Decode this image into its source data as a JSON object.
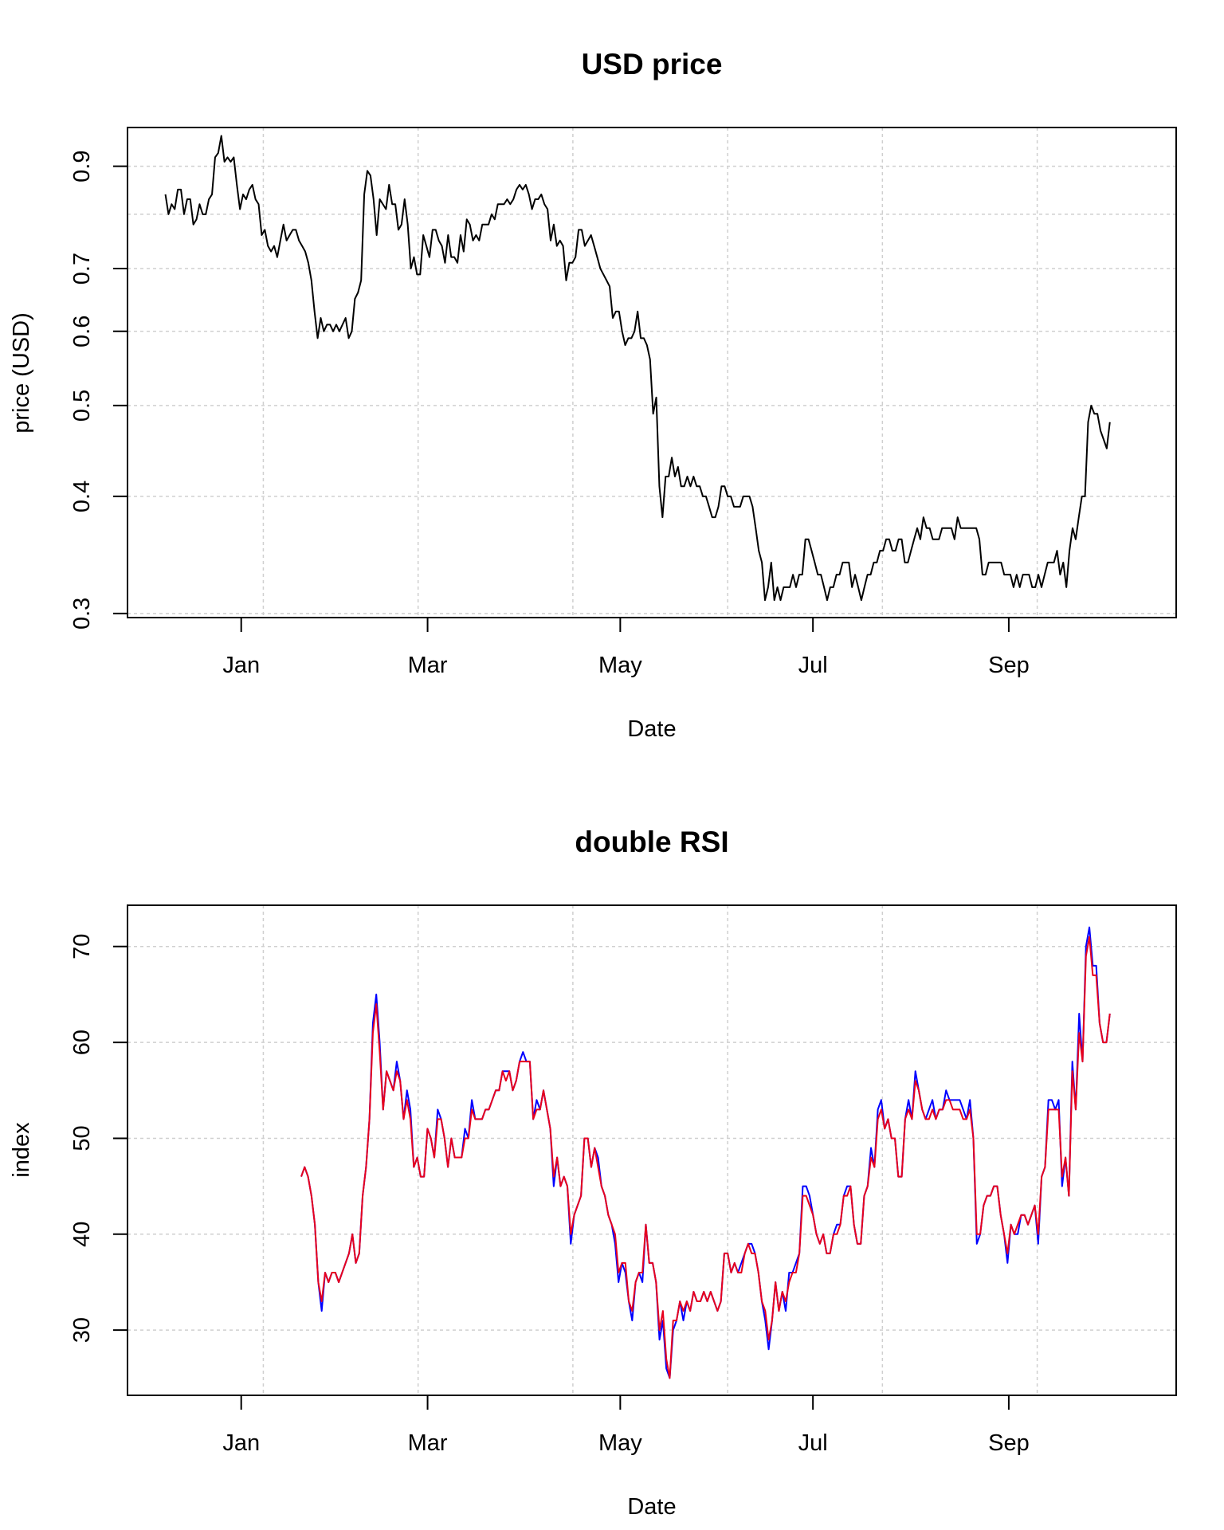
{
  "chart_data": [
    {
      "type": "line",
      "title": "USD price",
      "xlabel": "Date",
      "ylabel": "price (USD)",
      "y_scale": "log",
      "xlim": [
        "2017-11-26",
        "2018-10-24"
      ],
      "ylim": [
        0.297,
        0.99
      ],
      "x_ticks": [
        {
          "label": "Jan",
          "date": "2018-01-01"
        },
        {
          "label": "Mar",
          "date": "2018-03-01"
        },
        {
          "label": "May",
          "date": "2018-05-01"
        },
        {
          "label": "Jul",
          "date": "2018-07-01"
        },
        {
          "label": "Sep",
          "date": "2018-09-01"
        }
      ],
      "x_grid": [
        "2018-01-08",
        "2018-02-26",
        "2018-04-16",
        "2018-06-04",
        "2018-07-23",
        "2018-09-10"
      ],
      "y_ticks": [
        0.3,
        0.4,
        0.5,
        0.6,
        0.7,
        0.9
      ],
      "y_grid": [
        0.3,
        0.4,
        0.5,
        0.6,
        0.7,
        0.8,
        0.9,
        1.0
      ],
      "grid": true,
      "series": [
        {
          "color": "#000000",
          "start": "2017-12-08",
          "end": "2018-10-03",
          "values": [
            0.84,
            0.8,
            0.82,
            0.81,
            0.85,
            0.85,
            0.8,
            0.83,
            0.83,
            0.78,
            0.79,
            0.82,
            0.8,
            0.8,
            0.83,
            0.84,
            0.92,
            0.93,
            0.97,
            0.91,
            0.92,
            0.91,
            0.92,
            0.86,
            0.81,
            0.84,
            0.83,
            0.85,
            0.86,
            0.83,
            0.82,
            0.76,
            0.77,
            0.74,
            0.73,
            0.74,
            0.72,
            0.75,
            0.78,
            0.75,
            0.76,
            0.77,
            0.77,
            0.75,
            0.74,
            0.73,
            0.71,
            0.68,
            0.63,
            0.59,
            0.62,
            0.6,
            0.61,
            0.61,
            0.6,
            0.61,
            0.6,
            0.61,
            0.62,
            0.59,
            0.6,
            0.65,
            0.66,
            0.68,
            0.84,
            0.89,
            0.88,
            0.83,
            0.76,
            0.83,
            0.82,
            0.81,
            0.86,
            0.82,
            0.82,
            0.77,
            0.78,
            0.83,
            0.78,
            0.7,
            0.72,
            0.69,
            0.69,
            0.76,
            0.74,
            0.72,
            0.77,
            0.77,
            0.75,
            0.74,
            0.71,
            0.76,
            0.72,
            0.72,
            0.71,
            0.76,
            0.73,
            0.79,
            0.78,
            0.75,
            0.76,
            0.75,
            0.78,
            0.78,
            0.78,
            0.8,
            0.79,
            0.82,
            0.82,
            0.82,
            0.83,
            0.82,
            0.83,
            0.85,
            0.86,
            0.85,
            0.86,
            0.84,
            0.81,
            0.83,
            0.83,
            0.84,
            0.82,
            0.81,
            0.75,
            0.78,
            0.74,
            0.75,
            0.74,
            0.68,
            0.71,
            0.71,
            0.72,
            0.77,
            0.77,
            0.74,
            0.75,
            0.76,
            0.74,
            0.72,
            0.7,
            0.69,
            0.68,
            0.67,
            0.62,
            0.63,
            0.63,
            0.6,
            0.58,
            0.59,
            0.59,
            0.6,
            0.63,
            0.59,
            0.59,
            0.58,
            0.56,
            0.49,
            0.51,
            0.41,
            0.38,
            0.42,
            0.42,
            0.44,
            0.42,
            0.43,
            0.41,
            0.41,
            0.42,
            0.41,
            0.42,
            0.41,
            0.41,
            0.4,
            0.4,
            0.39,
            0.38,
            0.38,
            0.39,
            0.41,
            0.41,
            0.4,
            0.4,
            0.39,
            0.39,
            0.39,
            0.4,
            0.4,
            0.4,
            0.39,
            0.37,
            0.35,
            0.34,
            0.31,
            0.32,
            0.34,
            0.31,
            0.32,
            0.31,
            0.32,
            0.32,
            0.32,
            0.33,
            0.32,
            0.33,
            0.33,
            0.36,
            0.36,
            0.35,
            0.34,
            0.33,
            0.33,
            0.32,
            0.31,
            0.32,
            0.32,
            0.33,
            0.33,
            0.34,
            0.34,
            0.34,
            0.32,
            0.33,
            0.32,
            0.31,
            0.32,
            0.33,
            0.33,
            0.34,
            0.34,
            0.35,
            0.35,
            0.36,
            0.36,
            0.35,
            0.35,
            0.36,
            0.36,
            0.34,
            0.34,
            0.35,
            0.36,
            0.37,
            0.36,
            0.38,
            0.37,
            0.37,
            0.36,
            0.36,
            0.36,
            0.37,
            0.37,
            0.37,
            0.37,
            0.36,
            0.38,
            0.37,
            0.37,
            0.37,
            0.37,
            0.37,
            0.37,
            0.36,
            0.33,
            0.33,
            0.34,
            0.34,
            0.34,
            0.34,
            0.34,
            0.33,
            0.33,
            0.33,
            0.32,
            0.33,
            0.32,
            0.33,
            0.33,
            0.33,
            0.32,
            0.32,
            0.33,
            0.32,
            0.33,
            0.34,
            0.34,
            0.34,
            0.35,
            0.33,
            0.34,
            0.32,
            0.35,
            0.37,
            0.36,
            0.38,
            0.4,
            0.4,
            0.48,
            0.5,
            0.49,
            0.49,
            0.47,
            0.46,
            0.45,
            0.48
          ]
        }
      ]
    },
    {
      "type": "line",
      "title": "double RSI",
      "xlabel": "Date",
      "ylabel": "index",
      "xlim": [
        "2017-11-26",
        "2018-10-24"
      ],
      "ylim": [
        23.2,
        74.3
      ],
      "x_ticks": [
        {
          "label": "Jan",
          "date": "2018-01-01"
        },
        {
          "label": "Mar",
          "date": "2018-03-01"
        },
        {
          "label": "May",
          "date": "2018-05-01"
        },
        {
          "label": "Jul",
          "date": "2018-07-01"
        },
        {
          "label": "Sep",
          "date": "2018-09-01"
        }
      ],
      "x_grid": [
        "2018-01-08",
        "2018-02-26",
        "2018-04-16",
        "2018-06-04",
        "2018-07-23",
        "2018-09-10"
      ],
      "y_ticks": [
        30,
        40,
        50,
        60,
        70
      ],
      "y_grid": [
        30,
        40,
        50,
        60,
        70
      ],
      "grid": true,
      "series": [
        {
          "color": "#0000ff",
          "start": "2018-01-20",
          "end": "2018-10-03",
          "values": [
            46,
            47,
            46,
            44,
            41,
            35,
            32,
            36,
            35,
            36,
            36,
            35,
            36,
            37,
            38,
            40,
            37,
            38,
            44,
            47,
            52,
            62,
            65,
            60,
            53,
            57,
            56,
            55,
            58,
            56,
            52,
            55,
            53,
            47,
            48,
            46,
            46,
            51,
            50,
            48,
            53,
            52,
            50,
            47,
            50,
            48,
            48,
            48,
            51,
            50,
            54,
            52,
            52,
            52,
            53,
            53,
            54,
            55,
            55,
            57,
            57,
            57,
            55,
            56,
            58,
            59,
            58,
            58,
            52,
            54,
            53,
            55,
            53,
            51,
            45,
            48,
            45,
            46,
            45,
            39,
            42,
            43,
            44,
            50,
            50,
            47,
            49,
            48,
            45,
            44,
            42,
            41,
            39,
            35,
            37,
            36,
            33,
            31,
            35,
            36,
            35,
            41,
            37,
            37,
            35,
            29,
            31,
            26,
            25,
            30,
            31,
            33,
            31,
            33,
            32,
            34,
            33,
            33,
            34,
            33,
            34,
            33,
            32,
            33,
            38,
            38,
            36,
            37,
            36,
            37,
            38,
            39,
            39,
            38,
            36,
            33,
            31,
            28,
            31,
            35,
            32,
            34,
            32,
            36,
            36,
            37,
            38,
            45,
            45,
            44,
            42,
            40,
            39,
            40,
            38,
            38,
            40,
            41,
            41,
            44,
            45,
            45,
            41,
            39,
            39,
            44,
            45,
            49,
            47,
            53,
            54,
            51,
            52,
            50,
            50,
            46,
            46,
            52,
            54,
            52,
            57,
            55,
            53,
            52,
            53,
            54,
            52,
            53,
            53,
            55,
            54,
            54,
            54,
            54,
            53,
            52,
            54,
            50,
            39,
            40,
            43,
            44,
            44,
            45,
            45,
            42,
            40,
            37,
            41,
            40,
            40,
            42,
            42,
            41,
            42,
            43,
            39,
            46,
            47,
            54,
            54,
            53,
            54,
            45,
            48,
            44,
            58,
            53,
            63,
            58,
            70,
            72,
            68,
            68,
            62,
            60,
            60,
            63
          ]
        },
        {
          "color": "#e8001c",
          "start": "2018-01-20",
          "end": "2018-10-03",
          "values": [
            46,
            47,
            46,
            44,
            41,
            35,
            33,
            36,
            35,
            36,
            36,
            35,
            36,
            37,
            38,
            40,
            37,
            38,
            44,
            47,
            52,
            61,
            64,
            59,
            53,
            57,
            56,
            55,
            57,
            56,
            52,
            54,
            52,
            47,
            48,
            46,
            46,
            51,
            50,
            48,
            52,
            52,
            50,
            47,
            50,
            48,
            48,
            48,
            50,
            50,
            53,
            52,
            52,
            52,
            53,
            53,
            54,
            55,
            55,
            57,
            56,
            57,
            55,
            56,
            58,
            58,
            58,
            58,
            52,
            53,
            53,
            55,
            53,
            51,
            46,
            48,
            45,
            46,
            45,
            40,
            42,
            43,
            44,
            50,
            50,
            47,
            49,
            47,
            45,
            44,
            42,
            41,
            40,
            36,
            37,
            37,
            33,
            32,
            35,
            36,
            36,
            41,
            37,
            37,
            35,
            30,
            32,
            27,
            25,
            31,
            31,
            33,
            32,
            33,
            32,
            34,
            33,
            33,
            34,
            33,
            34,
            33,
            32,
            33,
            38,
            38,
            36,
            37,
            36,
            36,
            38,
            39,
            38,
            38,
            36,
            33,
            32,
            29,
            31,
            35,
            32,
            34,
            33,
            35,
            36,
            36,
            38,
            44,
            44,
            43,
            42,
            40,
            39,
            40,
            38,
            38,
            40,
            40,
            41,
            44,
            44,
            45,
            41,
            39,
            39,
            44,
            45,
            48,
            47,
            52,
            53,
            51,
            52,
            50,
            50,
            46,
            46,
            52,
            53,
            52,
            56,
            55,
            53,
            52,
            52,
            53,
            52,
            53,
            53,
            54,
            54,
            53,
            53,
            53,
            52,
            52,
            53,
            50,
            40,
            40,
            43,
            44,
            44,
            45,
            45,
            42,
            40,
            38,
            41,
            40,
            41,
            42,
            42,
            41,
            42,
            43,
            40,
            46,
            47,
            53,
            53,
            53,
            53,
            46,
            48,
            44,
            57,
            53,
            61,
            58,
            69,
            71,
            67,
            67,
            62,
            60,
            60,
            63
          ]
        }
      ]
    }
  ]
}
